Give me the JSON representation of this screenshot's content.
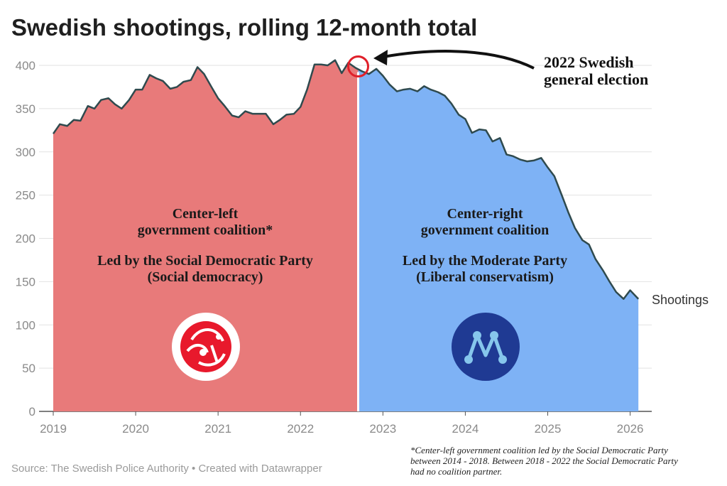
{
  "chart_data": {
    "type": "area",
    "title": "Swedish shootings, rolling 12-month total",
    "series_name": "Shootings",
    "xlabel": "",
    "ylabel": "",
    "ylim": [
      0,
      400
    ],
    "yticks": [
      0,
      50,
      100,
      150,
      200,
      250,
      300,
      350,
      400
    ],
    "x_range": [
      2019.0,
      2026.15
    ],
    "xticks": [
      "2019",
      "2020",
      "2021",
      "2022",
      "2023",
      "2024",
      "2025",
      "2026"
    ],
    "xtick_values": [
      2019,
      2020,
      2021,
      2022,
      2023,
      2024,
      2025,
      2026
    ],
    "split_x": 2022.7,
    "x": [
      2019.0,
      2019.08,
      2019.17,
      2019.25,
      2019.33,
      2019.42,
      2019.5,
      2019.58,
      2019.67,
      2019.75,
      2019.83,
      2019.92,
      2020.0,
      2020.08,
      2020.17,
      2020.25,
      2020.33,
      2020.42,
      2020.5,
      2020.58,
      2020.67,
      2020.75,
      2020.83,
      2020.92,
      2021.0,
      2021.08,
      2021.17,
      2021.25,
      2021.33,
      2021.42,
      2021.5,
      2021.58,
      2021.67,
      2021.75,
      2021.83,
      2021.92,
      2022.0,
      2022.08,
      2022.17,
      2022.25,
      2022.33,
      2022.42,
      2022.5,
      2022.58,
      2022.67,
      2022.75,
      2022.83,
      2022.92,
      2023.0,
      2023.08,
      2023.17,
      2023.25,
      2023.33,
      2023.42,
      2023.5,
      2023.58,
      2023.67,
      2023.75,
      2023.83,
      2023.92,
      2024.0,
      2024.08,
      2024.17,
      2024.25,
      2024.33,
      2024.42,
      2024.5,
      2024.58,
      2024.67,
      2024.75,
      2024.83,
      2024.92,
      2025.0,
      2025.08,
      2025.17,
      2025.25,
      2025.33,
      2025.42,
      2025.5,
      2025.58,
      2025.67,
      2025.75,
      2025.83,
      2025.92,
      2026.0,
      2026.1
    ],
    "values": [
      321,
      332,
      330,
      337,
      336,
      353,
      350,
      360,
      362,
      355,
      350,
      360,
      372,
      372,
      389,
      385,
      382,
      373,
      375,
      381,
      383,
      398,
      390,
      375,
      362,
      353,
      342,
      340,
      347,
      344,
      344,
      344,
      332,
      337,
      343,
      344,
      352,
      372,
      401,
      401,
      400,
      406,
      391,
      403,
      397,
      393,
      390,
      396,
      388,
      378,
      370,
      372,
      373,
      370,
      376,
      372,
      369,
      365,
      356,
      343,
      338,
      322,
      326,
      325,
      312,
      316,
      297,
      295,
      291,
      289,
      290,
      293,
      282,
      272,
      250,
      230,
      212,
      198,
      193,
      176,
      163,
      150,
      138,
      130,
      140,
      130
    ],
    "left_region": {
      "lines": [
        "Center-left",
        "government coalition*",
        "Led by the Social Democratic Party",
        "(Social democracy)"
      ],
      "color": "#e87a7a",
      "logo_color": "#e8192c"
    },
    "right_region": {
      "lines": [
        "Center-right",
        "government coalition",
        "Led by the Moderate Party",
        "(Liberal conservatism)"
      ],
      "color": "#7eb2f5",
      "logo_color": "#1f3a93",
      "logo_accent": "#86c6ec"
    },
    "line_color": "#2f4a4e",
    "marker_color": "#e0202a",
    "annotation": [
      "2022 Swedish",
      "general election"
    ],
    "source": "Source: The Swedish Police Authority • Created with Datawrapper",
    "footnote": [
      "*Center-left government coalition led by the Social Democratic Party",
      "between 2014 - 2018. Between 2018 - 2022  the Social Democratic Party",
      "had no coalition partner."
    ]
  }
}
